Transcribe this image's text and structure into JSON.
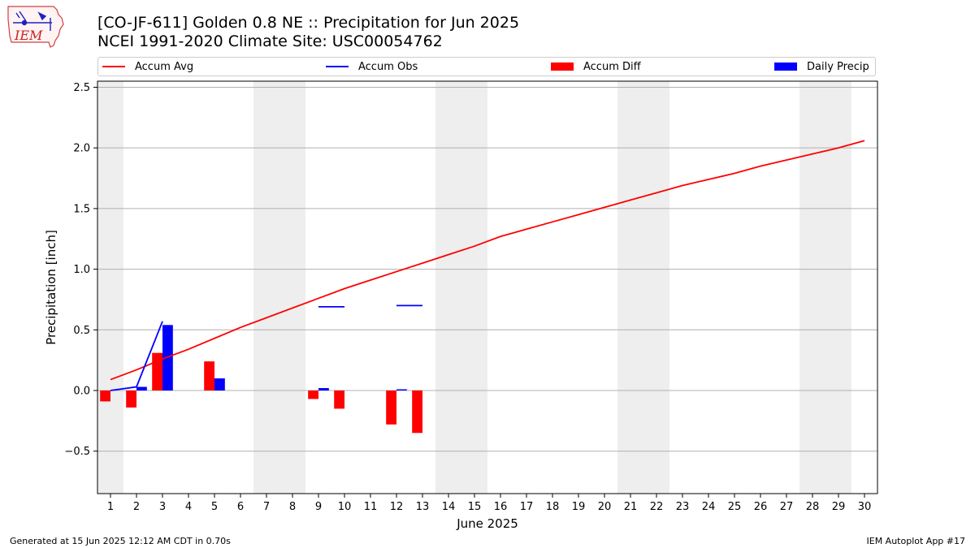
{
  "header": {
    "title_line1": "[CO-JF-611] Golden 0.8 NE :: Precipitation for Jun 2025",
    "title_line2": "NCEI 1991-2020 Climate Site: USC00054762",
    "logo_text": "IEM"
  },
  "footer": {
    "generated": "Generated at 15 Jun 2025 12:12 AM CDT in 0.70s",
    "app": "IEM Autoplot App #17"
  },
  "chart_data": {
    "type": "bar",
    "xlabel": "June 2025",
    "ylabel": "Precipitation [inch]",
    "xlim": [
      0.5,
      30.5
    ],
    "ylim": [
      -0.85,
      2.55
    ],
    "x_ticks": [
      1,
      2,
      3,
      4,
      5,
      6,
      7,
      8,
      9,
      10,
      11,
      12,
      13,
      14,
      15,
      16,
      17,
      18,
      19,
      20,
      21,
      22,
      23,
      24,
      25,
      26,
      27,
      28,
      29,
      30
    ],
    "y_ticks": [
      -0.5,
      0.0,
      0.5,
      1.0,
      1.5,
      2.0,
      2.5
    ],
    "y_tick_labels": [
      "−0.5",
      "0.0",
      "0.5",
      "1.0",
      "1.5",
      "2.0",
      "2.5"
    ],
    "grid": "horizontal",
    "legend_position": "top",
    "weekend_shading": [
      [
        0.5,
        1.5
      ],
      [
        6.5,
        8.5
      ],
      [
        13.5,
        15.5
      ],
      [
        20.5,
        22.5
      ],
      [
        27.5,
        29.5
      ]
    ],
    "series": [
      {
        "name": "Accum Avg",
        "kind": "line",
        "color": "#ff0000",
        "x": [
          1,
          2,
          3,
          4,
          5,
          6,
          7,
          8,
          9,
          10,
          11,
          12,
          13,
          14,
          15,
          16,
          17,
          18,
          19,
          20,
          21,
          22,
          23,
          24,
          25,
          26,
          27,
          28,
          29,
          30
        ],
        "values": [
          0.09,
          0.17,
          0.26,
          0.34,
          0.43,
          0.52,
          0.6,
          0.68,
          0.76,
          0.84,
          0.91,
          0.98,
          1.05,
          1.12,
          1.19,
          1.27,
          1.33,
          1.39,
          1.45,
          1.51,
          1.57,
          1.63,
          1.69,
          1.74,
          1.79,
          1.85,
          1.9,
          1.95,
          2.0,
          2.06
        ]
      },
      {
        "name": "Accum Obs",
        "kind": "line",
        "color": "#0000ff",
        "segments": [
          {
            "x": [
              1,
              2,
              3
            ],
            "values": [
              0.0,
              0.03,
              0.57
            ]
          },
          {
            "x": [
              9,
              10
            ],
            "values": [
              0.69,
              0.69
            ]
          },
          {
            "x": [
              12,
              13
            ],
            "values": [
              0.7,
              0.7
            ]
          }
        ]
      },
      {
        "name": "Accum Diff",
        "kind": "bar",
        "color": "#ff0000",
        "x": [
          1,
          2,
          3,
          5,
          9,
          10,
          12,
          13
        ],
        "values": [
          -0.09,
          -0.14,
          0.31,
          0.24,
          -0.07,
          -0.15,
          -0.28,
          -0.35
        ]
      },
      {
        "name": "Daily Precip",
        "kind": "bar",
        "color": "#0000ff",
        "x": [
          2,
          3,
          5,
          9,
          12
        ],
        "values": [
          0.03,
          0.54,
          0.1,
          0.02,
          0.01
        ]
      }
    ]
  }
}
